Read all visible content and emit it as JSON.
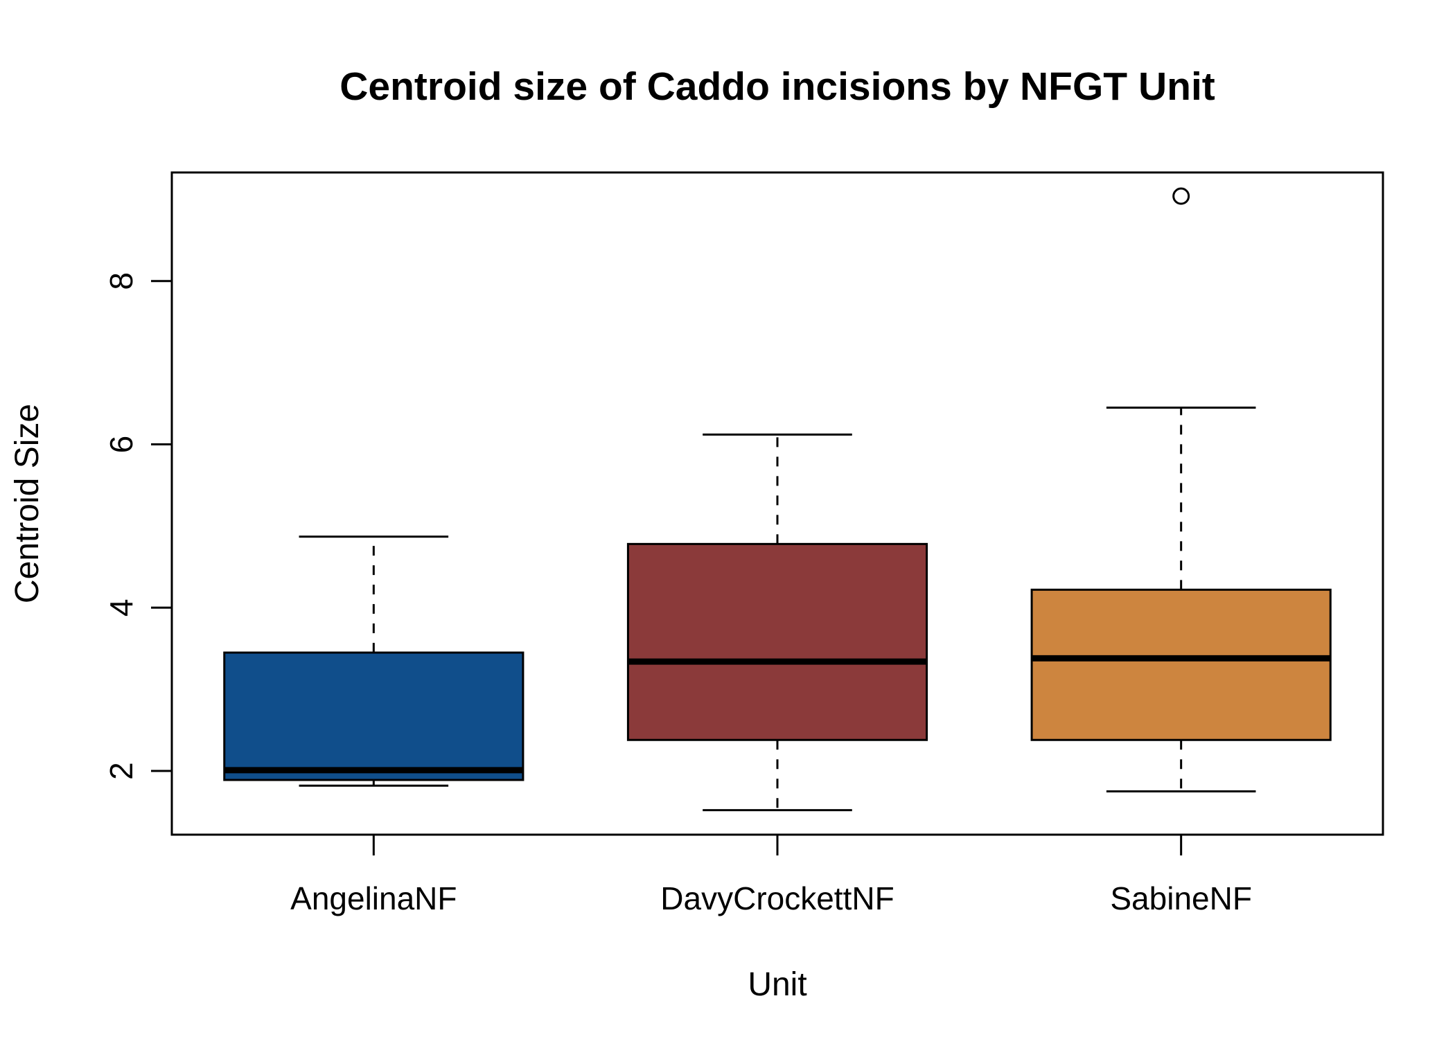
{
  "chart_data": {
    "type": "boxplot",
    "title": "Centroid size of Caddo incisions by NFGT Unit",
    "xlabel": "Unit",
    "ylabel": "Centroid Size",
    "ylim": [
      1.22,
      9.33
    ],
    "yticks": [
      "2",
      "4",
      "6",
      "8"
    ],
    "categories": [
      "AngelinaNF",
      "DavyCrockettNF",
      "SabineNF"
    ],
    "colors": [
      "#104E8B",
      "#8B3A3A",
      "#CD853F"
    ],
    "boxes": [
      {
        "name": "AngelinaNF",
        "whisker_low": 1.82,
        "q1": 1.89,
        "median": 2.01,
        "q3": 3.45,
        "whisker_high": 4.87,
        "outliers": []
      },
      {
        "name": "DavyCrockettNF",
        "whisker_low": 1.52,
        "q1": 2.38,
        "median": 3.34,
        "q3": 4.78,
        "whisker_high": 6.12,
        "outliers": []
      },
      {
        "name": "SabineNF",
        "whisker_low": 1.75,
        "q1": 2.38,
        "median": 3.38,
        "q3": 4.22,
        "whisker_high": 6.45,
        "outliers": [
          9.04
        ]
      }
    ],
    "grid": false,
    "legend": "none"
  }
}
